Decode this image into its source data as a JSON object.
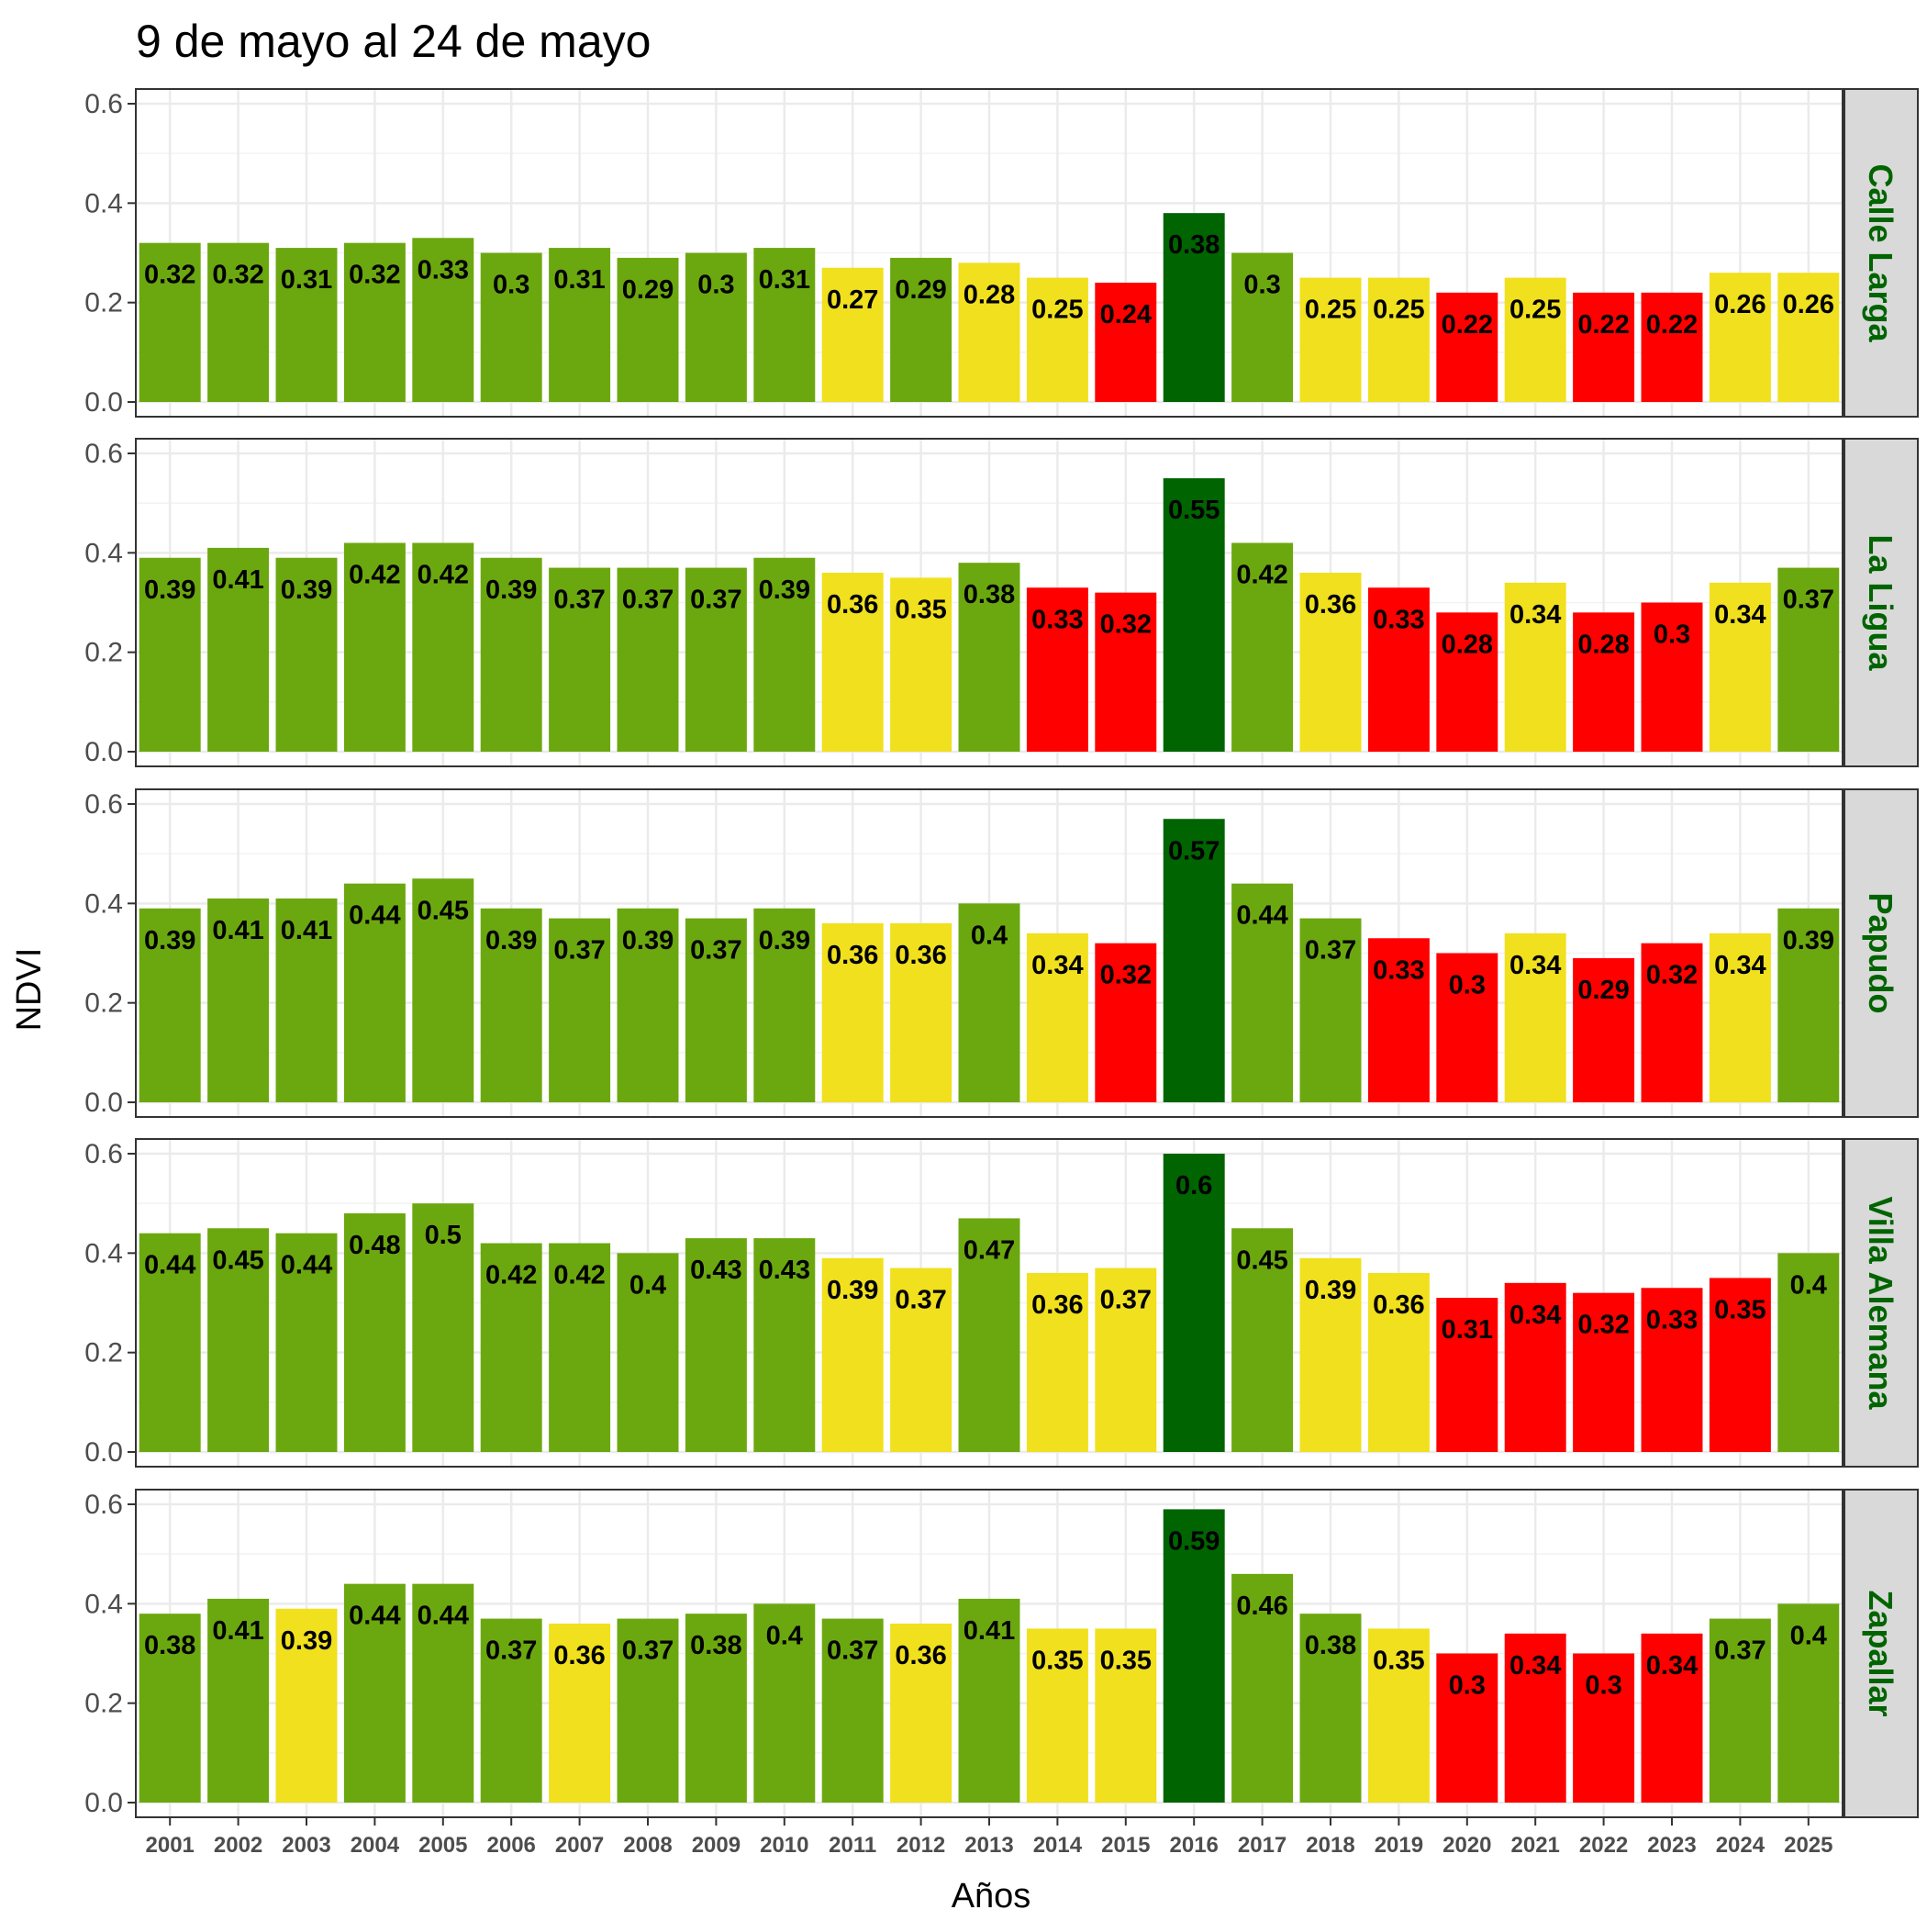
{
  "chart_data": {
    "type": "bar",
    "title": "9 de mayo al 24 de mayo",
    "xlabel": "Años",
    "ylabel": "NDVI",
    "ylim": [
      0,
      0.6
    ],
    "yticks": [
      "0.0",
      "0.2",
      "0.4",
      "0.6"
    ],
    "grid": true,
    "facet_label_color": "#006400",
    "strip_fill": "#d9d9d9",
    "categories": [
      "2001",
      "2002",
      "2003",
      "2004",
      "2005",
      "2006",
      "2007",
      "2008",
      "2009",
      "2010",
      "2011",
      "2012",
      "2013",
      "2014",
      "2015",
      "2016",
      "2017",
      "2018",
      "2019",
      "2020",
      "2021",
      "2022",
      "2023",
      "2024",
      "2025"
    ],
    "color_classes": {
      "g": "#6ba80f",
      "y": "#f0e01e",
      "r": "#ff0000",
      "d": "#006400"
    },
    "panels": [
      {
        "name": "Calle Larga",
        "values": [
          0.32,
          0.32,
          0.31,
          0.32,
          0.33,
          0.3,
          0.31,
          0.29,
          0.3,
          0.31,
          0.27,
          0.29,
          0.28,
          0.25,
          0.24,
          0.38,
          0.3,
          0.25,
          0.25,
          0.22,
          0.25,
          0.22,
          0.22,
          0.26,
          0.26
        ],
        "labels": [
          "0.32",
          "0.32",
          "0.31",
          "0.32",
          "0.33",
          "0.3",
          "0.31",
          "0.29",
          "0.3",
          "0.31",
          "0.27",
          "0.29",
          "0.28",
          "0.25",
          "0.24",
          "0.38",
          "0.3",
          "0.25",
          "0.25",
          "0.22",
          "0.25",
          "0.22",
          "0.22",
          "0.26",
          "0.26"
        ],
        "classes": [
          "g",
          "g",
          "g",
          "g",
          "g",
          "g",
          "g",
          "g",
          "g",
          "g",
          "y",
          "g",
          "y",
          "y",
          "r",
          "d",
          "g",
          "y",
          "y",
          "r",
          "y",
          "r",
          "r",
          "y",
          "y"
        ]
      },
      {
        "name": "La Ligua",
        "values": [
          0.39,
          0.41,
          0.39,
          0.42,
          0.42,
          0.39,
          0.37,
          0.37,
          0.37,
          0.39,
          0.36,
          0.35,
          0.38,
          0.33,
          0.32,
          0.55,
          0.42,
          0.36,
          0.33,
          0.28,
          0.34,
          0.28,
          0.3,
          0.34,
          0.37
        ],
        "labels": [
          "0.39",
          "0.41",
          "0.39",
          "0.42",
          "0.42",
          "0.39",
          "0.37",
          "0.37",
          "0.37",
          "0.39",
          "0.36",
          "0.35",
          "0.38",
          "0.33",
          "0.32",
          "0.55",
          "0.42",
          "0.36",
          "0.33",
          "0.28",
          "0.34",
          "0.28",
          "0.3",
          "0.34",
          "0.37"
        ],
        "classes": [
          "g",
          "g",
          "g",
          "g",
          "g",
          "g",
          "g",
          "g",
          "g",
          "g",
          "y",
          "y",
          "g",
          "r",
          "r",
          "d",
          "g",
          "y",
          "r",
          "r",
          "y",
          "r",
          "r",
          "y",
          "g"
        ]
      },
      {
        "name": "Papudo",
        "values": [
          0.39,
          0.41,
          0.41,
          0.44,
          0.45,
          0.39,
          0.37,
          0.39,
          0.37,
          0.39,
          0.36,
          0.36,
          0.4,
          0.34,
          0.32,
          0.57,
          0.44,
          0.37,
          0.33,
          0.3,
          0.34,
          0.29,
          0.32,
          0.34,
          0.39
        ],
        "labels": [
          "0.39",
          "0.41",
          "0.41",
          "0.44",
          "0.45",
          "0.39",
          "0.37",
          "0.39",
          "0.37",
          "0.39",
          "0.36",
          "0.36",
          "0.4",
          "0.34",
          "0.32",
          "0.57",
          "0.44",
          "0.37",
          "0.33",
          "0.3",
          "0.34",
          "0.29",
          "0.32",
          "0.34",
          "0.39"
        ],
        "classes": [
          "g",
          "g",
          "g",
          "g",
          "g",
          "g",
          "g",
          "g",
          "g",
          "g",
          "y",
          "y",
          "g",
          "y",
          "r",
          "d",
          "g",
          "g",
          "r",
          "r",
          "y",
          "r",
          "r",
          "y",
          "g"
        ]
      },
      {
        "name": "Villa Alemana",
        "values": [
          0.44,
          0.45,
          0.44,
          0.48,
          0.5,
          0.42,
          0.42,
          0.4,
          0.43,
          0.43,
          0.39,
          0.37,
          0.47,
          0.36,
          0.37,
          0.6,
          0.45,
          0.39,
          0.36,
          0.31,
          0.34,
          0.32,
          0.33,
          0.35,
          0.4
        ],
        "labels": [
          "0.44",
          "0.45",
          "0.44",
          "0.48",
          "0.5",
          "0.42",
          "0.42",
          "0.4",
          "0.43",
          "0.43",
          "0.39",
          "0.37",
          "0.47",
          "0.36",
          "0.37",
          "0.6",
          "0.45",
          "0.39",
          "0.36",
          "0.31",
          "0.34",
          "0.32",
          "0.33",
          "0.35",
          "0.4"
        ],
        "classes": [
          "g",
          "g",
          "g",
          "g",
          "g",
          "g",
          "g",
          "g",
          "g",
          "g",
          "y",
          "y",
          "g",
          "y",
          "y",
          "d",
          "g",
          "y",
          "y",
          "r",
          "r",
          "r",
          "r",
          "r",
          "g"
        ]
      },
      {
        "name": "Zapallar",
        "values": [
          0.38,
          0.41,
          0.39,
          0.44,
          0.44,
          0.37,
          0.36,
          0.37,
          0.38,
          0.4,
          0.37,
          0.36,
          0.41,
          0.35,
          0.35,
          0.59,
          0.46,
          0.38,
          0.35,
          0.3,
          0.34,
          0.3,
          0.34,
          0.37,
          0.4
        ],
        "labels": [
          "0.38",
          "0.41",
          "0.39",
          "0.44",
          "0.44",
          "0.37",
          "0.36",
          "0.37",
          "0.38",
          "0.4",
          "0.37",
          "0.36",
          "0.41",
          "0.35",
          "0.35",
          "0.59",
          "0.46",
          "0.38",
          "0.35",
          "0.3",
          "0.34",
          "0.3",
          "0.34",
          "0.37",
          "0.4"
        ],
        "classes": [
          "g",
          "g",
          "y",
          "g",
          "g",
          "g",
          "y",
          "g",
          "g",
          "g",
          "g",
          "y",
          "g",
          "y",
          "y",
          "d",
          "g",
          "g",
          "y",
          "r",
          "r",
          "r",
          "r",
          "g",
          "g"
        ]
      }
    ]
  }
}
